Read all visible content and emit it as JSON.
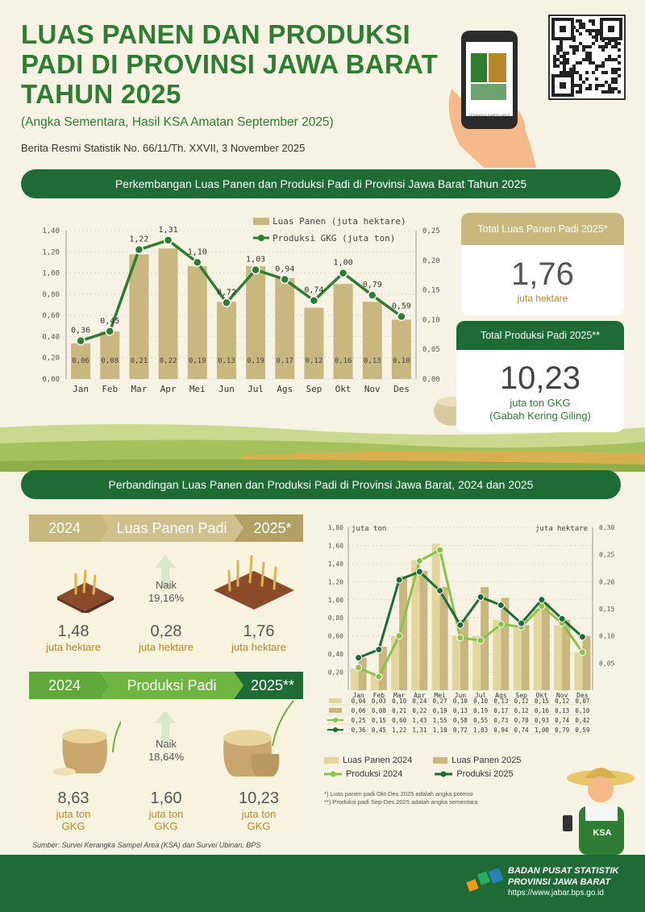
{
  "header": {
    "title_lines": [
      "LUAS PANEN DAN PRODUKSI",
      "PADI DI PROVINSI JAWA BARAT",
      "TAHUN 2025"
    ],
    "subtitle": "(Angka Sementara, Hasil KSA Amatan September 2025)",
    "release": "Berita Resmi Statistik No. 66/11/Th. XXVII, 3 November 2025",
    "phone_caption": "KERANGKA SAMPEL AREA"
  },
  "section1": {
    "banner": "Perkembangan Luas Panen dan Produksi Padi di Provinsi Jawa Barat Tahun 2025",
    "card1": {
      "title": "Total Luas Panen Padi 2025*",
      "value": "1,76",
      "unit": "juta hektare"
    },
    "card2": {
      "title": "Total Produksi Padi 2025**",
      "value": "10,23",
      "unit_line1": "juta ton GKG",
      "unit_line2": "(Gabah Kering Giling)"
    }
  },
  "section2": {
    "banner": "Perbandingan Luas Panen dan Produksi Padi di Provinsi Jawa Barat, 2024 dan 2025",
    "luas": {
      "year_a": "2024",
      "label": "Luas Panen Padi",
      "year_b": "2025*",
      "naik_label": "Naik",
      "naik_pct": "19,16%",
      "val_a": "1,48",
      "unit_a": "juta hektare",
      "val_mid": "0,28",
      "unit_mid": "juta hektare",
      "val_b": "1,76",
      "unit_b": "juta hektare"
    },
    "produksi": {
      "year_a": "2024",
      "label": "Produksi Padi",
      "year_b": "2025**",
      "naik_label": "Naik",
      "naik_pct": "18,64%",
      "val_a": "8,63",
      "unit_a1": "juta ton",
      "unit_a2": "GKG",
      "val_mid": "1,60",
      "unit_mid1": "juta ton",
      "unit_mid2": "GKG",
      "val_b": "10,23",
      "unit_b1": "juta ton",
      "unit_b2": "GKG"
    },
    "notes": [
      "*) Luas panen padi Okt-Des 2025 adalah angka potensi",
      "**) Produksi padi Sep-Des 2025 adalah angka sementara"
    ],
    "ksa_badge": "KSA"
  },
  "source": "Sumber: Survei Kerangka Sampel Area (KSA) dan Survei Ubinan, BPS",
  "footer": {
    "org1": "BADAN PUSAT STATISTIK",
    "org2": "PROVINSI JAWA BARAT",
    "url": "https://www.jabar.bps.go.id"
  },
  "colors": {
    "dark_green": "#1e6b35",
    "green": "#2e7d32",
    "light_green": "#8bc34a",
    "bar_tan": "#c8b77f",
    "bar_light": "#e3d69d",
    "gold": "#b8862b"
  },
  "chart_data": [
    {
      "type": "bar",
      "categories": [
        "Jan",
        "Feb",
        "Mar",
        "Apr",
        "Mei",
        "Jun",
        "Jul",
        "Ags",
        "Sep",
        "Okt",
        "Nov",
        "Des"
      ],
      "series": [
        {
          "name": "Luas Panen (juta hektare)",
          "kind": "bar",
          "axis": "right",
          "values": [
            0.06,
            0.08,
            0.21,
            0.22,
            0.19,
            0.13,
            0.19,
            0.17,
            0.12,
            0.16,
            0.13,
            0.1
          ]
        },
        {
          "name": "Produksi GKG (juta ton)",
          "kind": "line",
          "axis": "left",
          "values": [
            0.36,
            0.45,
            1.22,
            1.31,
            1.1,
            0.72,
            1.03,
            0.94,
            0.74,
            1.0,
            0.79,
            0.59
          ]
        }
      ],
      "y_left_ticks": [
        "0,00",
        "0,20",
        "0,40",
        "0,60",
        "0,80",
        "1,00",
        "1,20",
        "1,40"
      ],
      "y_right_ticks": [
        "0,00",
        "0,05",
        "0,10",
        "0,15",
        "0,20",
        "0,25"
      ],
      "ylim_left": [
        0,
        1.4
      ],
      "ylim_right": [
        0,
        0.25
      ],
      "bar_labels": [
        "0,06",
        "0,08",
        "0,21",
        "0,22",
        "0,19",
        "0,13",
        "0,19",
        "0,17",
        "0,12",
        "0,16",
        "0,13",
        "0,10"
      ],
      "line_labels": [
        "0,36",
        "0,45",
        "1,22",
        "1,31",
        "1,10",
        "0,72",
        "1,03",
        "0,94",
        "0,74",
        "1,00",
        "0,79",
        "0,59"
      ]
    },
    {
      "type": "bar",
      "categories": [
        "Jan",
        "Feb",
        "Mar",
        "Apr",
        "Mei",
        "Jun",
        "Jul",
        "Ags",
        "Sep",
        "Okt",
        "Nov",
        "Des"
      ],
      "left_unit": "juta ton",
      "right_unit": "juta hektare",
      "series": [
        {
          "name": "Luas Panen 2024",
          "kind": "bar",
          "axis": "right",
          "values": [
            0.04,
            0.03,
            0.1,
            0.24,
            0.27,
            0.1,
            0.1,
            0.13,
            0.12,
            0.15,
            0.12,
            0.07
          ]
        },
        {
          "name": "Luas Panen 2025",
          "kind": "bar",
          "axis": "right",
          "values": [
            0.06,
            0.08,
            0.21,
            0.22,
            0.19,
            0.13,
            0.19,
            0.17,
            0.12,
            0.16,
            0.13,
            0.1
          ]
        },
        {
          "name": "Produksi 2024",
          "kind": "line",
          "axis": "left",
          "values": [
            0.25,
            0.15,
            0.6,
            1.43,
            1.55,
            0.58,
            0.55,
            0.73,
            0.7,
            0.93,
            0.74,
            0.42
          ]
        },
        {
          "name": "Produksi 2025",
          "kind": "line",
          "axis": "left",
          "values": [
            0.36,
            0.45,
            1.22,
            1.31,
            1.1,
            0.72,
            1.03,
            0.94,
            0.74,
            1.0,
            0.79,
            0.59
          ]
        }
      ],
      "y_left_ticks": [
        "0,20",
        "0,40",
        "0,60",
        "0,80",
        "1,00",
        "1,20",
        "1,40",
        "1,60",
        "1,80"
      ],
      "y_right_ticks": [
        "0,05",
        "0,10",
        "0,15",
        "0,20",
        "0,25",
        "0,30"
      ],
      "ylim_left": [
        0,
        1.8
      ],
      "ylim_right": [
        0,
        0.3
      ],
      "table_rows": [
        [
          "0,04",
          "0,03",
          "0,10",
          "0,24",
          "0,27",
          "0,10",
          "0,10",
          "0,13",
          "0,12",
          "0,15",
          "0,12",
          "0,07"
        ],
        [
          "0,06",
          "0,08",
          "0,21",
          "0,22",
          "0,19",
          "0,13",
          "0,19",
          "0,17",
          "0,12",
          "0,16",
          "0,13",
          "0,10"
        ],
        [
          "0,25",
          "0,15",
          "0,60",
          "1,43",
          "1,55",
          "0,58",
          "0,55",
          "0,73",
          "0,70",
          "0,93",
          "0,74",
          "0,42"
        ],
        [
          "0,36",
          "0,45",
          "1,22",
          "1,31",
          "1,10",
          "0,72",
          "1,03",
          "0,94",
          "0,74",
          "1,00",
          "0,79",
          "0,59"
        ]
      ]
    }
  ]
}
